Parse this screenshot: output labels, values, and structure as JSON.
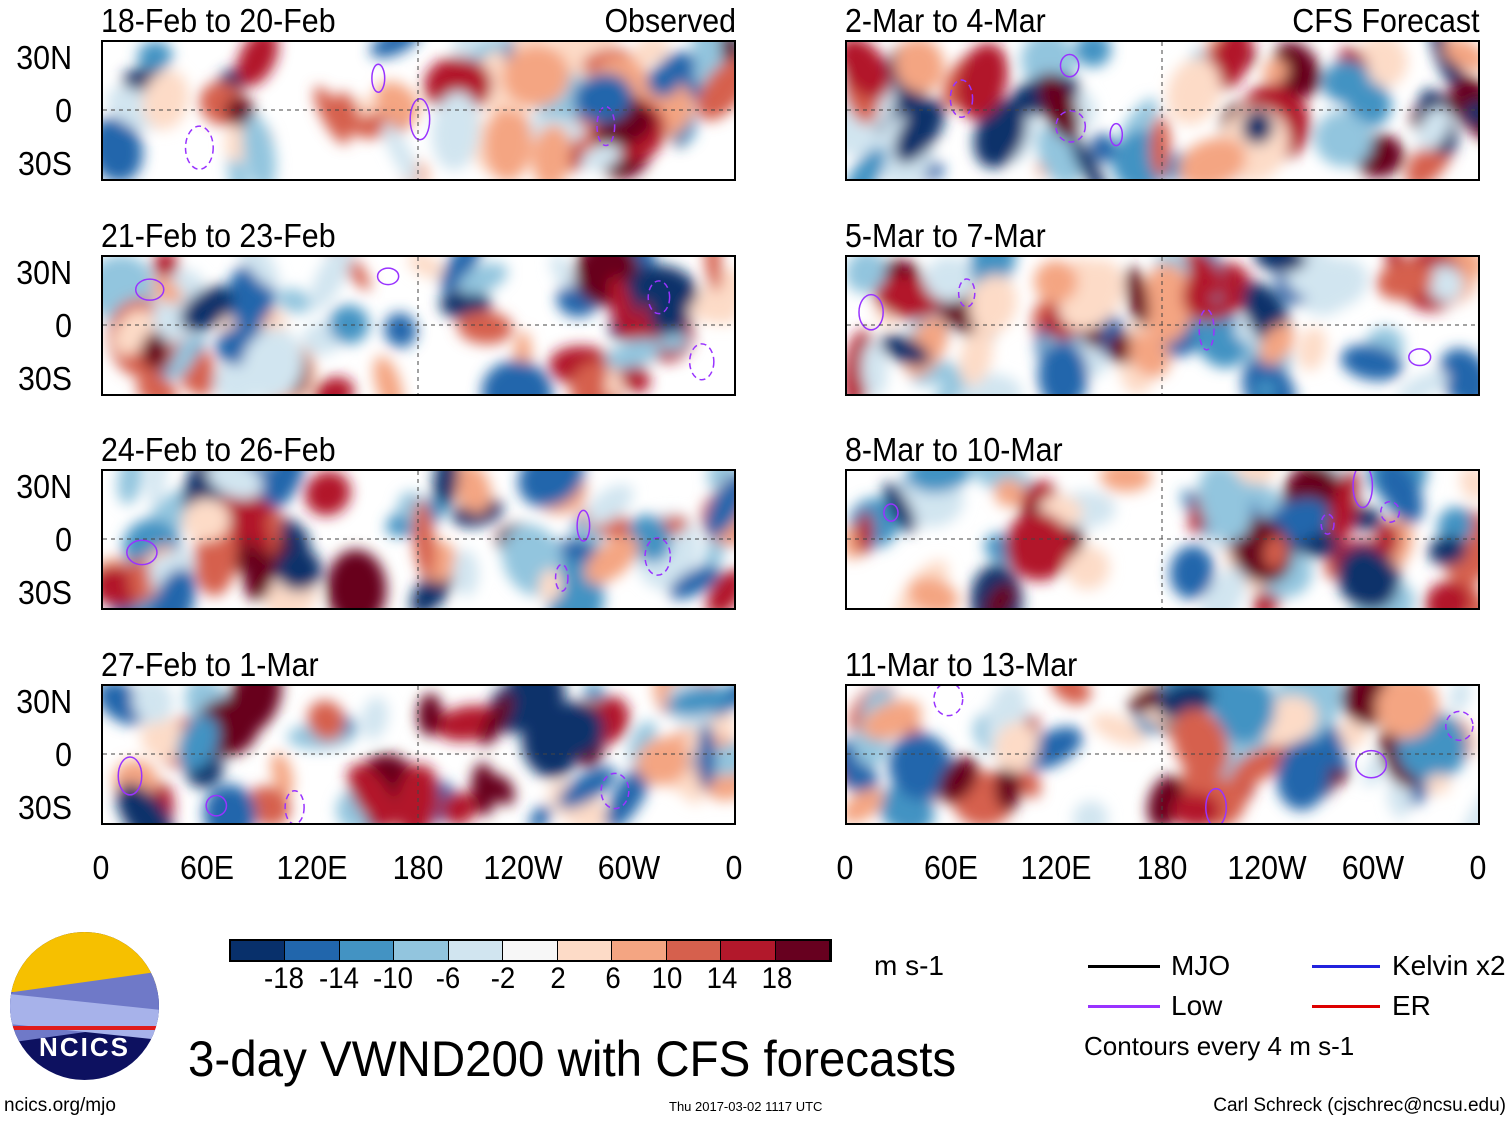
{
  "panels": [
    {
      "title": "18-Feb to 20-Feb",
      "tag": "Observed",
      "seed": 11
    },
    {
      "title": "21-Feb to 23-Feb",
      "tag": "",
      "seed": 23
    },
    {
      "title": "24-Feb to 26-Feb",
      "tag": "",
      "seed": 37
    },
    {
      "title": "27-Feb to 1-Mar",
      "tag": "",
      "seed": 41
    },
    {
      "title": "2-Mar to 4-Mar",
      "tag": "CFS Forecast",
      "seed": 53
    },
    {
      "title": "5-Mar to 7-Mar",
      "tag": "",
      "seed": 67
    },
    {
      "title": "8-Mar to 10-Mar",
      "tag": "",
      "seed": 79
    },
    {
      "title": "11-Mar to 13-Mar",
      "tag": "",
      "seed": 83
    }
  ],
  "chart_data": {
    "type": "heatmap",
    "title": "3-day VWND200 with CFS forecasts",
    "variable": "200-hPa meridional wind anomaly",
    "units": "m s-1",
    "lat_ticks": [
      "30N",
      "0",
      "30S"
    ],
    "lon_ticks": [
      "0",
      "60E",
      "120E",
      "180",
      "120W",
      "60W",
      "0"
    ],
    "colorbar": {
      "levels": [
        "-18",
        "-14",
        "-10",
        "-6",
        "-2",
        "2",
        "6",
        "10",
        "14",
        "18"
      ],
      "colors": [
        "#08306b",
        "#2166ac",
        "#4393c3",
        "#92c5de",
        "#d1e5f0",
        "#f7f7f7",
        "#fddbc7",
        "#f4a582",
        "#d6604d",
        "#b2182b",
        "#67001f"
      ]
    },
    "legend": [
      {
        "label": "MJO",
        "color": "#000000"
      },
      {
        "label": "Kelvin x2",
        "color": "#2222dd"
      },
      {
        "label": "Low",
        "color": "#9933ff"
      },
      {
        "label": "ER",
        "color": "#dd0000"
      }
    ],
    "contour_note": "Contours every 4 m s-1"
  },
  "footer": {
    "left": "ncics.org/mjo",
    "center": "Thu 2017-03-02 1117 UTC",
    "right": "Carl Schreck (cjschrec@ncsu.edu)",
    "logo_text": "NCICS"
  }
}
